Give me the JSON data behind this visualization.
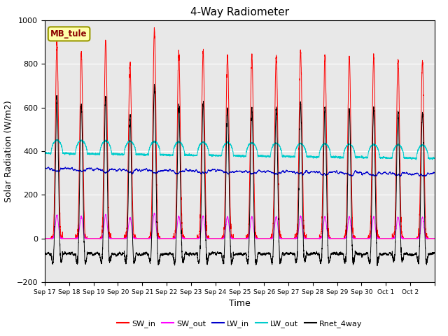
{
  "title": "4-Way Radiometer",
  "xlabel": "Time",
  "ylabel": "Solar Radiation (W/m2)",
  "ylim": [
    -200,
    1000
  ],
  "background_color": "#e8e8e8",
  "station_label": "MB_tule",
  "colors": {
    "SW_in": "#ff0000",
    "SW_out": "#ff00ff",
    "LW_in": "#0000cc",
    "LW_out": "#00cccc",
    "Rnet_4way": "#000000"
  },
  "x_tick_labels": [
    "Sep 17",
    "Sep 18",
    "Sep 19",
    "Sep 20",
    "Sep 21",
    "Sep 22",
    "Sep 23",
    "Sep 24",
    "Sep 25",
    "Sep 26",
    "Sep 27",
    "Sep 28",
    "Sep 29",
    "Sep 30",
    "Oct 1",
    "Oct 2"
  ],
  "n_days": 16,
  "n_points_per_day": 288,
  "sw_peaks": [
    900,
    850,
    910,
    800,
    960,
    855,
    860,
    840,
    835,
    840,
    855,
    840,
    830,
    830,
    820,
    810
  ]
}
